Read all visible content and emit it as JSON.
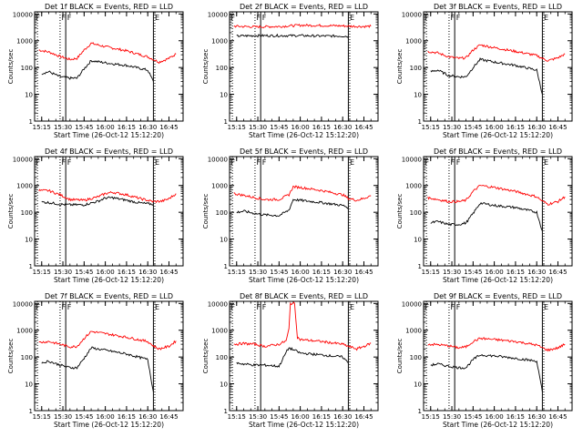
{
  "chart_data": [
    {
      "type": "line",
      "title": "Det 1f BLACK = Events, RED = LLD",
      "xlabel": "Start Time (26-Oct-12 15:12:20)",
      "ylabel": "Counts/sec",
      "xlim": [
        "15:10",
        "16:55"
      ],
      "ylim": [
        1,
        12000
      ],
      "yscale": "log",
      "x_ticks": [
        "15:15",
        "15:30",
        "15:45",
        "16:00",
        "16:15",
        "16:30",
        "16:45"
      ],
      "y_ticks": [
        "1",
        "10",
        "100",
        "1000",
        "10000"
      ],
      "vlines_dotted": [
        "15:12",
        "15:28",
        "16:35"
      ],
      "vlines_solid": [
        "15:32",
        "16:34"
      ],
      "series": [
        {
          "color": "#ff0000",
          "x": [
            "15:13",
            "15:20",
            "15:28",
            "15:35",
            "15:40",
            "15:45",
            "15:50",
            "16:00",
            "16:15",
            "16:30",
            "16:34",
            "16:38",
            "16:45",
            "16:50"
          ],
          "y": [
            450,
            380,
            260,
            200,
            220,
            450,
            800,
            600,
            420,
            250,
            200,
            160,
            220,
            320
          ]
        },
        {
          "color": "#000000",
          "x": [
            "15:15",
            "15:20",
            "15:28",
            "15:35",
            "15:40",
            "15:45",
            "15:50",
            "16:00",
            "16:15",
            "16:30",
            "16:34"
          ],
          "y": [
            60,
            70,
            45,
            40,
            40,
            90,
            180,
            150,
            120,
            80,
            30
          ]
        }
      ],
      "markers": [
        "F",
        "F",
        "F",
        "E"
      ]
    },
    {
      "type": "line",
      "title": "Det 2f BLACK = Events, RED = LLD",
      "xlabel": "Start Time (26-Oct-12 15:12:20)",
      "ylabel": "Counts/sec",
      "xlim": [
        "15:10",
        "16:55"
      ],
      "ylim": [
        1,
        12000
      ],
      "yscale": "log",
      "x_ticks": [
        "15:15",
        "15:30",
        "15:45",
        "16:00",
        "16:15",
        "16:30",
        "16:45"
      ],
      "y_ticks": [
        "1",
        "10",
        "100",
        "1000",
        "10000"
      ],
      "vlines_dotted": [
        "15:12",
        "15:28",
        "16:35"
      ],
      "vlines_solid": [
        "15:32",
        "16:34"
      ],
      "series": [
        {
          "color": "#ff0000",
          "x": [
            "15:13",
            "15:28",
            "15:45",
            "16:00",
            "16:15",
            "16:30",
            "16:34",
            "16:45",
            "16:50"
          ],
          "y": [
            3500,
            3300,
            3400,
            3800,
            3700,
            3600,
            3500,
            3400,
            3500
          ]
        },
        {
          "color": "#000000",
          "x": [
            "15:15",
            "15:28",
            "15:45",
            "16:00",
            "16:15",
            "16:30",
            "16:34"
          ],
          "y": [
            1500,
            1550,
            1550,
            1550,
            1500,
            1500,
            1450
          ]
        }
      ],
      "markers": [
        "F",
        "F",
        "F",
        "E"
      ]
    },
    {
      "type": "line",
      "title": "Det 3f BLACK = Events, RED = LLD",
      "xlabel": "Start Time (26-Oct-12 15:12:20)",
      "ylabel": "Counts/sec",
      "xlim": [
        "15:10",
        "16:55"
      ],
      "ylim": [
        1,
        12000
      ],
      "yscale": "log",
      "x_ticks": [
        "15:15",
        "15:30",
        "15:45",
        "16:00",
        "16:15",
        "16:30",
        "16:45"
      ],
      "y_ticks": [
        "1",
        "10",
        "100",
        "1000",
        "10000"
      ],
      "vlines_dotted": [
        "15:12",
        "15:28",
        "16:35"
      ],
      "vlines_solid": [
        "15:32",
        "16:34"
      ],
      "series": [
        {
          "color": "#ff0000",
          "x": [
            "15:13",
            "15:20",
            "15:28",
            "15:35",
            "15:40",
            "15:45",
            "15:50",
            "16:00",
            "16:15",
            "16:30",
            "16:34",
            "16:38",
            "16:45",
            "16:50"
          ],
          "y": [
            400,
            350,
            250,
            220,
            230,
            450,
            700,
            550,
            400,
            280,
            220,
            180,
            230,
            320
          ]
        },
        {
          "color": "#000000",
          "x": [
            "15:15",
            "15:20",
            "15:28",
            "15:35",
            "15:40",
            "15:45",
            "15:50",
            "16:00",
            "16:15",
            "16:30",
            "16:34"
          ],
          "y": [
            70,
            80,
            50,
            45,
            45,
            100,
            200,
            160,
            120,
            80,
            10
          ]
        }
      ],
      "markers": [
        "F",
        "F",
        "F",
        "E"
      ]
    },
    {
      "type": "line",
      "title": "Det 4f BLACK = Events, RED = LLD",
      "xlabel": "Start Time (26-Oct-12 15:12:20)",
      "ylabel": "Counts/sec",
      "xlim": [
        "15:10",
        "16:55"
      ],
      "ylim": [
        1,
        12000
      ],
      "yscale": "log",
      "x_ticks": [
        "15:15",
        "15:30",
        "15:45",
        "16:00",
        "16:15",
        "16:30",
        "16:45"
      ],
      "y_ticks": [
        "1",
        "10",
        "100",
        "1000",
        "10000"
      ],
      "vlines_dotted": [
        "15:12",
        "15:28",
        "16:35"
      ],
      "vlines_solid": [
        "15:32",
        "16:34"
      ],
      "series": [
        {
          "color": "#ff0000",
          "x": [
            "15:13",
            "15:20",
            "15:28",
            "15:35",
            "15:45",
            "15:55",
            "16:00",
            "16:05",
            "16:15",
            "16:25",
            "16:34",
            "16:40",
            "16:45",
            "16:50"
          ],
          "y": [
            650,
            640,
            450,
            300,
            280,
            380,
            500,
            560,
            450,
            320,
            250,
            260,
            320,
            500
          ]
        },
        {
          "color": "#000000",
          "x": [
            "15:15",
            "15:20",
            "15:28",
            "15:35",
            "15:45",
            "15:55",
            "16:00",
            "16:05",
            "16:15",
            "16:25",
            "16:34"
          ],
          "y": [
            240,
            230,
            200,
            190,
            190,
            260,
            340,
            350,
            280,
            220,
            200
          ]
        }
      ],
      "markers": [
        "F",
        "F",
        "F",
        "E"
      ]
    },
    {
      "type": "line",
      "title": "Det 5f BLACK = Events, RED = LLD",
      "xlabel": "Start Time (26-Oct-12 15:12:20)",
      "ylabel": "Counts/sec",
      "xlim": [
        "15:10",
        "16:55"
      ],
      "ylim": [
        1,
        12000
      ],
      "yscale": "log",
      "x_ticks": [
        "15:15",
        "15:30",
        "15:45",
        "16:00",
        "16:15",
        "16:30",
        "16:45"
      ],
      "y_ticks": [
        "1",
        "10",
        "100",
        "1000",
        "10000"
      ],
      "vlines_dotted": [
        "15:12",
        "15:28",
        "16:35"
      ],
      "vlines_solid": [
        "15:32",
        "16:34"
      ],
      "series": [
        {
          "color": "#ff0000",
          "x": [
            "15:13",
            "15:20",
            "15:28",
            "15:35",
            "15:45",
            "15:52",
            "15:55",
            "16:00",
            "16:15",
            "16:30",
            "16:34",
            "16:40",
            "16:45",
            "16:50"
          ],
          "y": [
            500,
            430,
            350,
            300,
            300,
            450,
            900,
            850,
            650,
            450,
            330,
            280,
            330,
            420
          ]
        },
        {
          "color": "#000000",
          "x": [
            "15:15",
            "15:20",
            "15:28",
            "15:35",
            "15:45",
            "15:52",
            "15:55",
            "16:00",
            "16:15",
            "16:30",
            "16:34"
          ],
          "y": [
            100,
            110,
            90,
            80,
            75,
            120,
            300,
            280,
            230,
            180,
            150
          ]
        }
      ],
      "markers": [
        "F",
        "F",
        "F",
        "E"
      ]
    },
    {
      "type": "line",
      "title": "Det 6f BLACK = Events, RED = LLD",
      "xlabel": "Start Time (26-Oct-12 15:12:20)",
      "ylabel": "Counts/sec",
      "xlim": [
        "15:10",
        "16:55"
      ],
      "ylim": [
        1,
        12000
      ],
      "yscale": "log",
      "x_ticks": [
        "15:15",
        "15:30",
        "15:45",
        "16:00",
        "16:15",
        "16:30",
        "16:45"
      ],
      "y_ticks": [
        "1",
        "10",
        "100",
        "1000",
        "10000"
      ],
      "vlines_dotted": [
        "15:12",
        "15:28",
        "16:35"
      ],
      "vlines_solid": [
        "15:32",
        "16:34"
      ],
      "series": [
        {
          "color": "#ff0000",
          "x": [
            "15:13",
            "15:20",
            "15:28",
            "15:35",
            "15:40",
            "15:45",
            "15:50",
            "16:00",
            "16:15",
            "16:30",
            "16:34",
            "16:38",
            "16:45",
            "16:50"
          ],
          "y": [
            350,
            300,
            250,
            250,
            280,
            600,
            1000,
            850,
            600,
            380,
            260,
            200,
            250,
            380
          ]
        },
        {
          "color": "#000000",
          "x": [
            "15:15",
            "15:20",
            "15:28",
            "15:35",
            "15:40",
            "15:45",
            "15:50",
            "16:00",
            "16:15",
            "16:30",
            "16:34"
          ],
          "y": [
            40,
            45,
            35,
            35,
            40,
            90,
            220,
            180,
            150,
            100,
            20
          ]
        }
      ],
      "markers": [
        "F",
        "F",
        "F",
        "E"
      ]
    },
    {
      "type": "line",
      "title": "Det 7f BLACK = Events, RED = LLD",
      "xlabel": "Start Time (26-Oct-12 15:12:20)",
      "ylabel": "Counts/sec",
      "xlim": [
        "15:10",
        "16:55"
      ],
      "ylim": [
        1,
        12000
      ],
      "yscale": "log",
      "x_ticks": [
        "15:15",
        "15:30",
        "15:45",
        "16:00",
        "16:15",
        "16:30",
        "16:45"
      ],
      "y_ticks": [
        "1",
        "10",
        "100",
        "1000",
        "10000"
      ],
      "vlines_dotted": [
        "15:12",
        "15:28",
        "16:35"
      ],
      "vlines_solid": [
        "15:32",
        "16:34"
      ],
      "series": [
        {
          "color": "#ff0000",
          "x": [
            "15:13",
            "15:20",
            "15:28",
            "15:35",
            "15:40",
            "15:45",
            "15:50",
            "16:00",
            "16:15",
            "16:30",
            "16:34",
            "16:38",
            "16:45",
            "16:50"
          ],
          "y": [
            350,
            380,
            300,
            240,
            250,
            500,
            900,
            750,
            550,
            380,
            260,
            200,
            250,
            400
          ]
        },
        {
          "color": "#000000",
          "x": [
            "15:15",
            "15:20",
            "15:28",
            "15:35",
            "15:40",
            "15:45",
            "15:50",
            "16:00",
            "16:15",
            "16:30",
            "16:34"
          ],
          "y": [
            60,
            70,
            50,
            40,
            40,
            90,
            220,
            180,
            130,
            80,
            5
          ]
        }
      ],
      "markers": [
        "F",
        "F",
        "F",
        "E"
      ]
    },
    {
      "type": "line",
      "title": "Det 8f BLACK = Events, RED = LLD",
      "xlabel": "Start Time (26-Oct-12 15:12:20)",
      "ylabel": "Counts/sec",
      "xlim": [
        "15:10",
        "16:55"
      ],
      "ylim": [
        1,
        12000
      ],
      "yscale": "log",
      "x_ticks": [
        "15:15",
        "15:30",
        "15:45",
        "16:00",
        "16:15",
        "16:30",
        "16:45"
      ],
      "y_ticks": [
        "1",
        "10",
        "100",
        "1000",
        "10000"
      ],
      "vlines_dotted": [
        "15:12",
        "15:28",
        "16:35"
      ],
      "vlines_solid": [
        "15:32",
        "16:34"
      ],
      "series": [
        {
          "color": "#ff0000",
          "x": [
            "15:13",
            "15:20",
            "15:28",
            "15:35",
            "15:45",
            "15:50",
            "15:52",
            "15:53",
            "15:56",
            "15:58",
            "16:00",
            "16:15",
            "16:30",
            "16:34",
            "16:40",
            "16:45",
            "16:50"
          ],
          "y": [
            300,
            320,
            300,
            250,
            300,
            400,
            1100,
            10000,
            10000,
            550,
            450,
            380,
            300,
            250,
            200,
            250,
            330
          ]
        },
        {
          "color": "#000000",
          "x": [
            "15:15",
            "15:20",
            "15:28",
            "15:35",
            "15:45",
            "15:50",
            "15:52",
            "15:58",
            "16:00",
            "16:15",
            "16:30",
            "16:34"
          ],
          "y": [
            60,
            55,
            50,
            50,
            45,
            150,
            220,
            160,
            140,
            120,
            100,
            60
          ]
        }
      ],
      "markers": [
        "F",
        "F",
        "F",
        "E"
      ]
    },
    {
      "type": "line",
      "title": "Det 9f BLACK = Events, RED = LLD",
      "xlabel": "Start Time (26-Oct-12 15:12:20)",
      "ylabel": "Counts/sec",
      "xlim": [
        "15:10",
        "16:55"
      ],
      "ylim": [
        1,
        12000
      ],
      "yscale": "log",
      "x_ticks": [
        "15:15",
        "15:30",
        "15:45",
        "16:00",
        "16:15",
        "16:30",
        "16:45"
      ],
      "y_ticks": [
        "1",
        "10",
        "100",
        "1000",
        "10000"
      ],
      "vlines_dotted": [
        "15:12",
        "15:28",
        "16:35"
      ],
      "vlines_solid": [
        "15:32",
        "16:34"
      ],
      "series": [
        {
          "color": "#ff0000",
          "x": [
            "15:13",
            "15:20",
            "15:28",
            "15:35",
            "15:40",
            "15:45",
            "15:50",
            "16:00",
            "16:15",
            "16:30",
            "16:34",
            "16:38",
            "16:45",
            "16:50"
          ],
          "y": [
            300,
            290,
            260,
            220,
            240,
            380,
            500,
            450,
            380,
            280,
            220,
            180,
            220,
            300
          ]
        },
        {
          "color": "#000000",
          "x": [
            "15:15",
            "15:20",
            "15:28",
            "15:35",
            "15:40",
            "15:45",
            "15:50",
            "16:00",
            "16:15",
            "16:30",
            "16:34"
          ],
          "y": [
            50,
            55,
            45,
            40,
            40,
            80,
            120,
            110,
            90,
            70,
            5
          ]
        }
      ],
      "markers": [
        "F",
        "F",
        "F",
        "E"
      ]
    }
  ]
}
